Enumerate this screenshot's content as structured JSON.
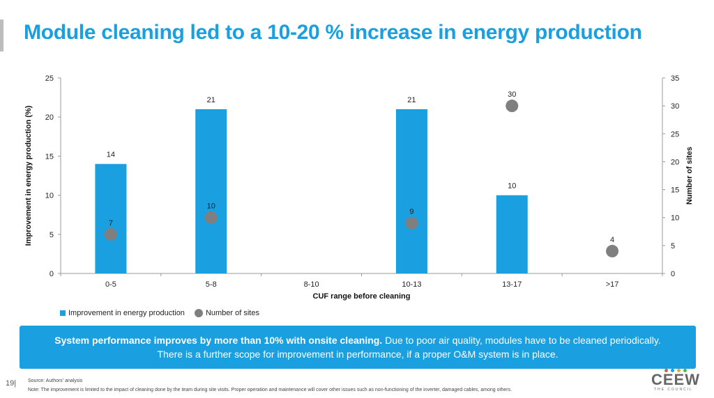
{
  "slide": {
    "title": "Module cleaning led to a 10-20 % increase in energy production",
    "page_number": "19",
    "callout_bold": "System performance improves by more than 10% with onsite cleaning.",
    "callout_text": " Due to poor air quality, modules have to be cleaned periodically. There is a further scope for improvement in performance, if a proper O&M system is in place.",
    "source": "Source: Authors' analysis",
    "note": "Note: The improvement is limited to the impact of cleaning done by the team during site visits. Proper operation and maintenance will cover other issues such as non-functioning of the inverter, damaged cables, among others.",
    "logo_text": "CEEW",
    "logo_sub": "THE COUNCIL",
    "logo_dot_colors": [
      "#e8524f",
      "#1a9fe0",
      "#f2a71b",
      "#5bb14a"
    ]
  },
  "chart_data": {
    "type": "bar",
    "title": "",
    "categories": [
      "0-5",
      "5-8",
      "8-10",
      "10-13",
      "13-17",
      ">17"
    ],
    "xlabel": "CUF range before cleaning",
    "ylabel": "Improvement in energy production (%)",
    "y2label": "Number of sites",
    "ylim": [
      0,
      25
    ],
    "y2lim": [
      0,
      35
    ],
    "yticks": [
      0,
      5,
      10,
      15,
      20,
      25
    ],
    "y2ticks": [
      0,
      5,
      10,
      15,
      20,
      25,
      30,
      35
    ],
    "series": [
      {
        "name": "Improvement in energy production",
        "kind": "bar",
        "axis": "left",
        "color": "#1a9fe0",
        "values": [
          14,
          21,
          null,
          21,
          10,
          null
        ]
      },
      {
        "name": "Number of sites",
        "kind": "scatter",
        "axis": "right",
        "color": "#7f7f7f",
        "values": [
          7,
          10,
          null,
          9,
          30,
          4
        ]
      }
    ],
    "legend_position": "bottom-left",
    "grid": false
  }
}
